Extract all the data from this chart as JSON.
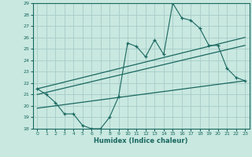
{
  "xlabel": "Humidex (Indice chaleur)",
  "bg_color": "#c8e8e0",
  "grid_color": "#a8ccc8",
  "line_color": "#1a6860",
  "xlim": [
    -0.5,
    23.5
  ],
  "ylim": [
    18,
    29
  ],
  "xticks": [
    0,
    1,
    2,
    3,
    4,
    5,
    6,
    7,
    8,
    9,
    10,
    11,
    12,
    13,
    14,
    15,
    16,
    17,
    18,
    19,
    20,
    21,
    22,
    23
  ],
  "yticks": [
    18,
    19,
    20,
    21,
    22,
    23,
    24,
    25,
    26,
    27,
    28,
    29
  ],
  "main_x": [
    0,
    1,
    2,
    3,
    4,
    5,
    6,
    7,
    8,
    9,
    10,
    11,
    12,
    13,
    14,
    15,
    16,
    17,
    18,
    19,
    20,
    21,
    22,
    23
  ],
  "main_y": [
    21.5,
    21.0,
    20.3,
    19.3,
    19.3,
    18.3,
    18.0,
    18.0,
    19.0,
    20.8,
    25.5,
    25.2,
    24.3,
    25.8,
    24.5,
    29.0,
    27.7,
    27.5,
    26.8,
    25.3,
    25.3,
    23.3,
    22.5,
    22.2
  ],
  "trend1_x": [
    0,
    23
  ],
  "trend1_y": [
    21.5,
    26.0
  ],
  "trend2_x": [
    0,
    23
  ],
  "trend2_y": [
    21.0,
    25.3
  ],
  "trend3_x": [
    0,
    23
  ],
  "trend3_y": [
    19.8,
    22.2
  ]
}
